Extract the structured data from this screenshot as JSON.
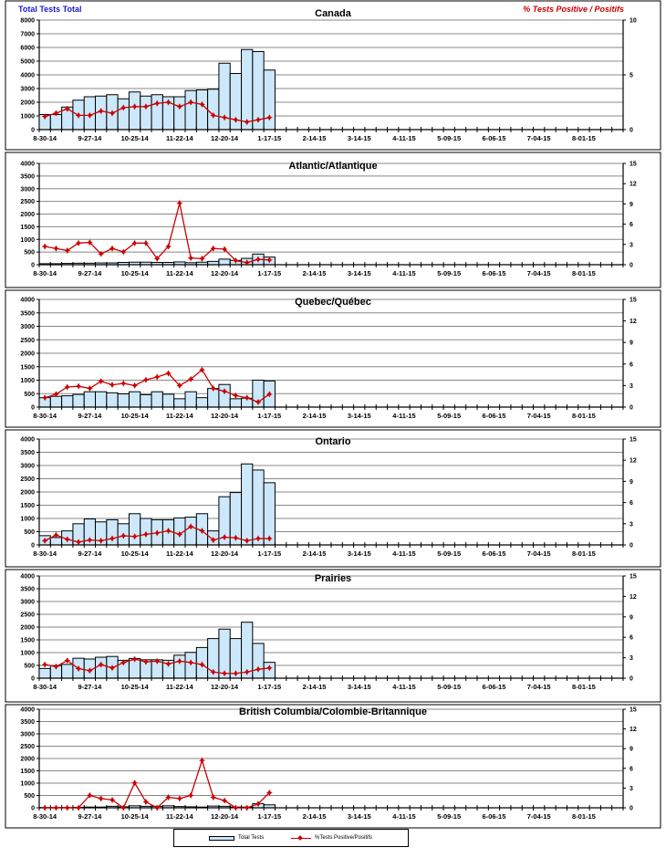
{
  "colors": {
    "bar_fill": "#cce8fa",
    "bar_stroke": "#000000",
    "line": "#cc0000",
    "left_label": "#1a1acc",
    "right_label": "#cc0000"
  },
  "header": {
    "left_axis_label": "Total Tests Total",
    "right_axis_label": "% Tests Positive / Positifs"
  },
  "legend": {
    "bar_label": "Total Tests",
    "line_label": "%Tests Positive/Positifs"
  },
  "chart_data": [
    {
      "type": "bar+line",
      "title": "Canada",
      "x_tick_labels": [
        "8-30-14",
        "9-27-14",
        "10-25-14",
        "11-22-14",
        "12-20-14",
        "1-17-15",
        "2-14-15",
        "3-14-15",
        "4-11-15",
        "5-09-15",
        "6-06-15",
        "7-04-15",
        "8-01-15"
      ],
      "weeks": 52,
      "y_left": {
        "min": 0,
        "max": 8000,
        "step": 1000
      },
      "y_right": {
        "min": 0,
        "max": 10,
        "ticks": [
          0,
          5,
          10
        ]
      },
      "series": [
        {
          "name": "Total Tests",
          "axis": "left",
          "values": [
            1100,
            1100,
            1650,
            2150,
            2400,
            2450,
            2550,
            2250,
            2750,
            2450,
            2550,
            2400,
            2400,
            2850,
            2900,
            2950,
            4850,
            4100,
            5850,
            5700,
            4350
          ]
        },
        {
          "name": "% Tests Positive",
          "axis": "right",
          "values": [
            1.2,
            1.5,
            1.9,
            1.3,
            1.3,
            1.7,
            1.5,
            2.0,
            2.1,
            2.1,
            2.4,
            2.5,
            2.1,
            2.5,
            2.3,
            1.3,
            1.1,
            0.9,
            0.7,
            0.9,
            1.1
          ]
        }
      ]
    },
    {
      "type": "bar+line",
      "title": "Atlantic/Atlantique",
      "x_tick_labels": [
        "8-30-14",
        "9-27-14",
        "10-25-14",
        "11-22-14",
        "12-20-14",
        "1-17-15",
        "2-14-15",
        "3-14-15",
        "4-11-15",
        "5-09-15",
        "6-06-15",
        "7-04-15",
        "8-01-15"
      ],
      "weeks": 52,
      "y_left": {
        "min": 0,
        "max": 4000,
        "step": 500
      },
      "y_right": {
        "min": 0,
        "max": 15,
        "ticks": [
          0,
          3,
          6,
          9,
          12,
          15
        ]
      },
      "series": [
        {
          "name": "Total Tests",
          "axis": "left",
          "values": [
            40,
            40,
            50,
            60,
            60,
            70,
            70,
            90,
            100,
            100,
            90,
            90,
            110,
            80,
            100,
            130,
            220,
            170,
            250,
            420,
            300
          ]
        },
        {
          "name": "% Tests Positive",
          "axis": "right",
          "values": [
            2.7,
            2.4,
            2.1,
            3.2,
            3.3,
            1.6,
            2.4,
            1.9,
            3.2,
            3.2,
            0.9,
            2.7,
            9.1,
            1.0,
            0.9,
            2.4,
            2.3,
            0.6,
            0.3,
            0.8,
            0.7
          ]
        }
      ]
    },
    {
      "type": "bar+line",
      "title": "Quebec/Québec",
      "x_tick_labels": [
        "8-30-14",
        "9-27-14",
        "10-25-14",
        "11-22-14",
        "12-20-14",
        "1-17-15",
        "2-14-15",
        "3-14-15",
        "4-11-15",
        "5-09-15",
        "6-06-15",
        "7-04-15",
        "8-01-15"
      ],
      "weeks": 52,
      "y_left": {
        "min": 0,
        "max": 4000,
        "step": 500
      },
      "y_right": {
        "min": 0,
        "max": 15,
        "ticks": [
          0,
          3,
          6,
          9,
          12,
          15
        ]
      },
      "series": [
        {
          "name": "Total Tests",
          "axis": "left",
          "values": [
            350,
            400,
            420,
            470,
            570,
            570,
            530,
            490,
            570,
            460,
            570,
            480,
            310,
            570,
            350,
            690,
            840,
            310,
            330,
            1000,
            970
          ]
        },
        {
          "name": "% Tests Positive",
          "axis": "right",
          "values": [
            1.3,
            1.8,
            2.8,
            2.9,
            2.6,
            3.6,
            3.1,
            3.3,
            3.0,
            3.8,
            4.2,
            4.7,
            3.0,
            3.9,
            5.2,
            2.6,
            2.2,
            1.6,
            1.3,
            0.7,
            1.8
          ]
        }
      ]
    },
    {
      "type": "bar+line",
      "title": "Ontario",
      "x_tick_labels": [
        "8-30-14",
        "9-27-14",
        "10-25-14",
        "11-22-14",
        "12-20-14",
        "1-17-15",
        "2-14-15",
        "3-14-15",
        "4-11-15",
        "5-09-15",
        "6-06-15",
        "7-04-15",
        "8-01-15"
      ],
      "weeks": 52,
      "y_left": {
        "min": 0,
        "max": 4000,
        "step": 500
      },
      "y_right": {
        "min": 0,
        "max": 15,
        "ticks": [
          0,
          3,
          6,
          9,
          12,
          15
        ]
      },
      "series": [
        {
          "name": "Total Tests",
          "axis": "left",
          "values": [
            350,
            280,
            530,
            800,
            980,
            870,
            950,
            800,
            1180,
            1000,
            950,
            950,
            1020,
            1050,
            1180,
            530,
            1820,
            1980,
            3060,
            2830,
            2350
          ]
        },
        {
          "name": "% Tests Positive",
          "axis": "right",
          "values": [
            0.6,
            1.4,
            0.8,
            0.4,
            0.7,
            0.6,
            0.9,
            1.3,
            1.2,
            1.5,
            1.7,
            2.0,
            1.5,
            2.6,
            2.0,
            0.7,
            1.1,
            1.0,
            0.6,
            0.9,
            0.9
          ]
        }
      ]
    },
    {
      "type": "bar+line",
      "title": "Prairies",
      "x_tick_labels": [
        "8-30-14",
        "9-27-14",
        "10-25-14",
        "11-22-14",
        "12-20-14",
        "1-17-15",
        "2-14-15",
        "3-14-15",
        "4-11-15",
        "5-09-15",
        "6-06-15",
        "7-04-15",
        "8-01-15"
      ],
      "weeks": 52,
      "y_left": {
        "min": 0,
        "max": 4000,
        "step": 500
      },
      "y_right": {
        "min": 0,
        "max": 15,
        "ticks": [
          0,
          3,
          6,
          9,
          12,
          15
        ]
      },
      "series": [
        {
          "name": "Total Tests",
          "axis": "left",
          "values": [
            380,
            490,
            540,
            780,
            750,
            820,
            850,
            700,
            770,
            720,
            720,
            700,
            900,
            1010,
            1200,
            1550,
            1920,
            1550,
            2190,
            1360,
            620
          ]
        },
        {
          "name": "% Tests Positive",
          "axis": "right",
          "values": [
            2.0,
            1.7,
            2.6,
            1.4,
            1.1,
            2.0,
            1.5,
            2.3,
            2.8,
            2.4,
            2.5,
            2.1,
            2.5,
            2.3,
            2.0,
            0.9,
            0.7,
            0.7,
            0.9,
            1.3,
            1.5
          ]
        }
      ]
    },
    {
      "type": "bar+line",
      "title": "British Columbia/Colombie-Britannique",
      "x_tick_labels": [
        "8-30-14",
        "9-27-14",
        "10-25-14",
        "11-22-14",
        "12-20-14",
        "1-17-15",
        "2-14-15",
        "3-14-15",
        "4-11-15",
        "5-09-15",
        "6-06-15",
        "7-04-15",
        "8-01-15"
      ],
      "weeks": 52,
      "y_left": {
        "min": 0,
        "max": 4000,
        "step": 500
      },
      "y_right": {
        "min": 0,
        "max": 15,
        "ticks": [
          0,
          3,
          6,
          9,
          12,
          15
        ]
      },
      "series": [
        {
          "name": "Total Tests",
          "axis": "left",
          "values": [
            10,
            10,
            10,
            20,
            30,
            30,
            60,
            40,
            80,
            60,
            60,
            80,
            50,
            40,
            30,
            70,
            60,
            30,
            30,
            170,
            120
          ]
        },
        {
          "name": "% Tests Positive",
          "axis": "right",
          "values": [
            0.0,
            0.0,
            0.0,
            0.0,
            1.9,
            1.4,
            1.2,
            0.0,
            3.8,
            0.9,
            0.0,
            1.6,
            1.4,
            1.9,
            7.2,
            1.6,
            1.1,
            0.0,
            0.0,
            0.6,
            2.3
          ]
        }
      ]
    }
  ]
}
